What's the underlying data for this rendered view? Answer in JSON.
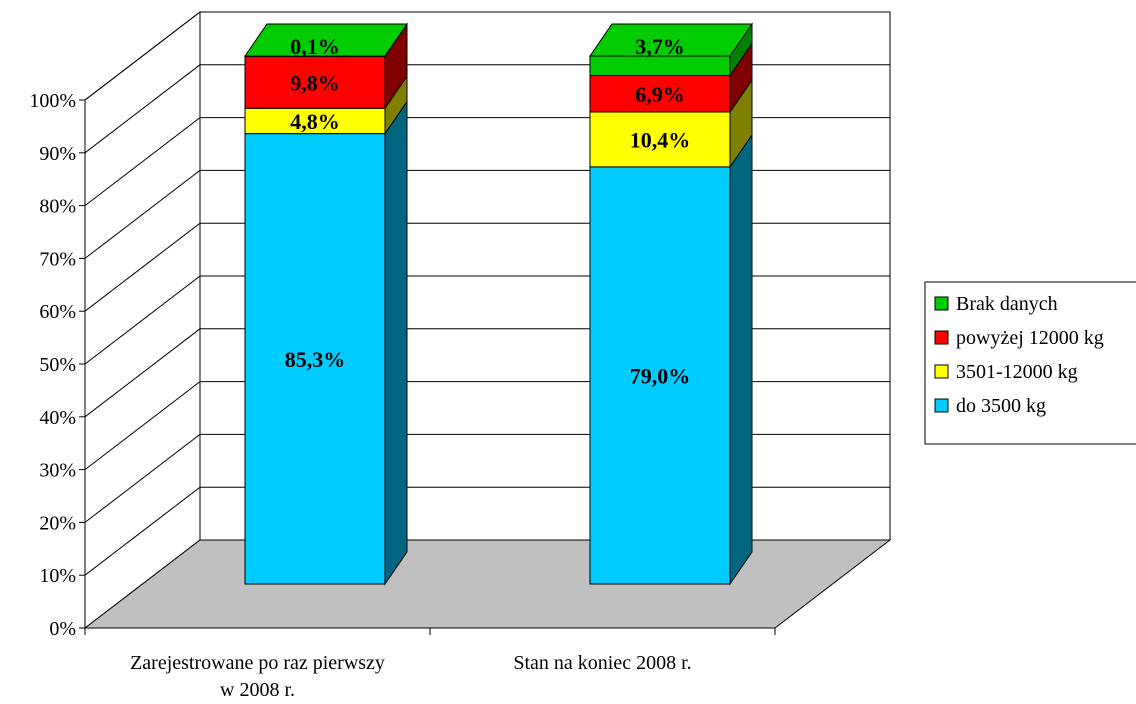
{
  "chart_data": {
    "type": "bar",
    "stacked": "percent",
    "categories": [
      "Zarejestrowane po raz pierwszy w 2008 r.",
      "Stan na koniec 2008 r."
    ],
    "category_lines": [
      [
        "Zarejestrowane po raz pierwszy",
        "w 2008 r."
      ],
      [
        "Stan na koniec 2008 r."
      ]
    ],
    "series": [
      {
        "name": "do 3500 kg",
        "values": [
          85.3,
          79.0
        ],
        "labels": [
          "85,3%",
          "79,0%"
        ],
        "color": "#00CCFF",
        "side_color": "#006680"
      },
      {
        "name": "3501-12000 kg",
        "values": [
          4.8,
          10.4
        ],
        "labels": [
          "4,8%",
          "10,4%"
        ],
        "color": "#FFFF00",
        "side_color": "#808000"
      },
      {
        "name": "powyżej 12000 kg",
        "values": [
          9.8,
          6.9
        ],
        "labels": [
          "9,8%",
          "6,9%"
        ],
        "color": "#FF0000",
        "side_color": "#800000"
      },
      {
        "name": "Brak danych",
        "values": [
          0.1,
          3.7
        ],
        "labels": [
          "0,1%",
          "3,7%"
        ],
        "color": "#00CC00",
        "side_color": "#008000"
      }
    ],
    "y_ticks": [
      "0%",
      "10%",
      "20%",
      "30%",
      "40%",
      "50%",
      "60%",
      "70%",
      "80%",
      "90%",
      "100%"
    ],
    "ylim": [
      0,
      100
    ],
    "grid": true,
    "floor_color": "#C0C0C0",
    "legend_items": [
      "Brak danych",
      "powyżej 12000 kg",
      "3501-12000 kg",
      "do 3500 kg"
    ],
    "legend_position": "right"
  }
}
